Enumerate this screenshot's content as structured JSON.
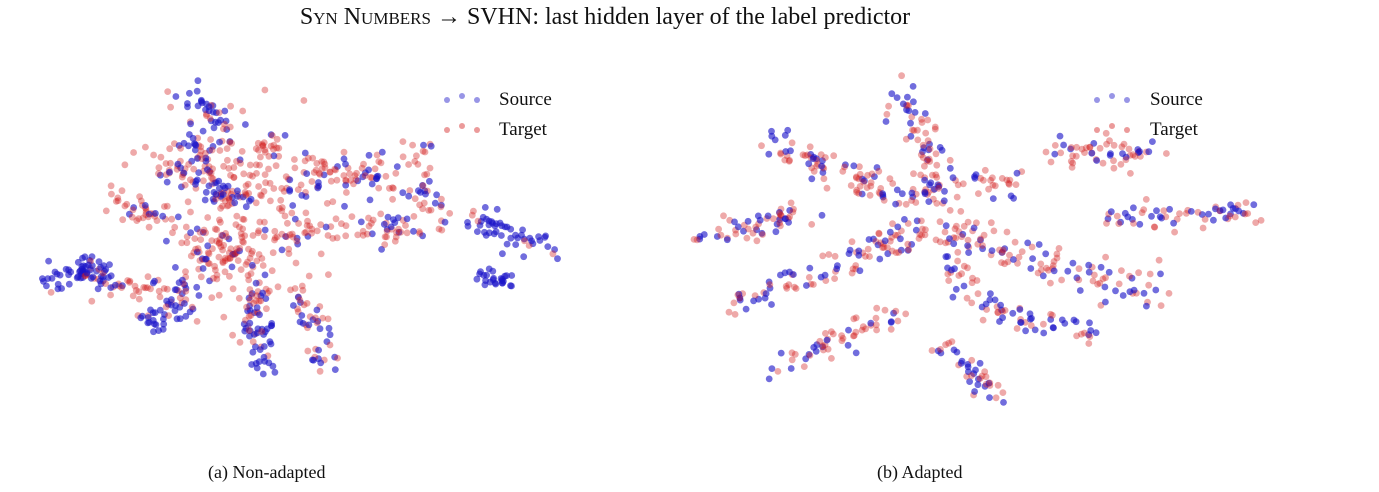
{
  "figure": {
    "title_smallcaps": "Syn Numbers",
    "title_arrow": "→",
    "title_rest": "SVHN: last hidden layer of the label predictor"
  },
  "colors": {
    "source": "#1a14c8",
    "target": "#d21e1e"
  },
  "chart_data": [
    {
      "type": "scatter",
      "caption": "(a) Non-adapted",
      "title": "",
      "xlabel": "",
      "ylabel": "",
      "axes_visible": false,
      "grid": false,
      "legend_position": "top-right",
      "series": [
        {
          "name": "Source",
          "color": "#1a14c8"
        },
        {
          "name": "Target",
          "color": "#d21e1e"
        }
      ],
      "clusters": [
        {
          "from": [
            0.03,
            0.62
          ],
          "to": [
            0.12,
            0.58
          ],
          "spread": 0.012,
          "n": 45,
          "source_frac": 0.92
        },
        {
          "from": [
            0.15,
            0.63
          ],
          "to": [
            0.21,
            0.64
          ],
          "spread": 0.01,
          "n": 20,
          "source_frac": 0.25
        },
        {
          "from": [
            0.27,
            0.05
          ],
          "to": [
            0.33,
            0.21
          ],
          "spread": 0.014,
          "n": 35,
          "source_frac": 0.85
        },
        {
          "from": [
            0.32,
            0.22
          ],
          "to": [
            0.37,
            0.62
          ],
          "spread": 0.055,
          "n": 160,
          "source_frac": 0.04
        },
        {
          "from": [
            0.2,
            0.26
          ],
          "to": [
            0.36,
            0.4
          ],
          "spread": 0.02,
          "n": 60,
          "source_frac": 0.35
        },
        {
          "from": [
            0.14,
            0.37
          ],
          "to": [
            0.36,
            0.57
          ],
          "spread": 0.018,
          "n": 70,
          "source_frac": 0.3
        },
        {
          "from": [
            0.36,
            0.48
          ],
          "to": [
            0.68,
            0.46
          ],
          "spread": 0.02,
          "n": 90,
          "source_frac": 0.25
        },
        {
          "from": [
            0.43,
            0.36
          ],
          "to": [
            0.67,
            0.24
          ],
          "spread": 0.018,
          "n": 60,
          "source_frac": 0.35
        },
        {
          "from": [
            0.46,
            0.28
          ],
          "to": [
            0.7,
            0.38
          ],
          "spread": 0.018,
          "n": 60,
          "source_frac": 0.25
        },
        {
          "from": [
            0.7,
            0.41
          ],
          "to": [
            0.86,
            0.53
          ],
          "spread": 0.016,
          "n": 55,
          "source_frac": 0.8
        },
        {
          "from": [
            0.75,
            0.6
          ],
          "to": [
            0.8,
            0.63
          ],
          "spread": 0.01,
          "n": 25,
          "source_frac": 0.95
        },
        {
          "from": [
            0.08,
            0.56
          ],
          "to": [
            0.14,
            0.65
          ],
          "spread": 0.015,
          "n": 30,
          "source_frac": 0.6
        },
        {
          "from": [
            0.38,
            0.62
          ],
          "to": [
            0.37,
            0.8
          ],
          "spread": 0.014,
          "n": 40,
          "source_frac": 0.5
        },
        {
          "from": [
            0.39,
            0.75
          ],
          "to": [
            0.39,
            0.88
          ],
          "spread": 0.01,
          "n": 25,
          "source_frac": 0.92
        },
        {
          "from": [
            0.45,
            0.65
          ],
          "to": [
            0.5,
            0.88
          ],
          "spread": 0.014,
          "n": 45,
          "source_frac": 0.5
        },
        {
          "from": [
            0.29,
            0.57
          ],
          "to": [
            0.2,
            0.76
          ],
          "spread": 0.016,
          "n": 45,
          "source_frac": 0.6
        },
        {
          "from": [
            0.19,
            0.74
          ],
          "to": [
            0.25,
            0.72
          ],
          "spread": 0.012,
          "n": 20,
          "source_frac": 0.95
        },
        {
          "from": [
            0.27,
            0.2
          ],
          "to": [
            0.31,
            0.33
          ],
          "spread": 0.015,
          "n": 30,
          "source_frac": 0.7
        },
        {
          "from": [
            0.37,
            0.28
          ],
          "to": [
            0.42,
            0.2
          ],
          "spread": 0.014,
          "n": 25,
          "source_frac": 0.2
        },
        {
          "from": [
            0.3,
            0.52
          ],
          "to": [
            0.36,
            0.56
          ],
          "spread": 0.02,
          "n": 30,
          "source_frac": 0.05
        }
      ]
    },
    {
      "type": "scatter",
      "caption": "(b) Adapted",
      "title": "",
      "xlabel": "",
      "ylabel": "",
      "axes_visible": false,
      "grid": false,
      "legend_position": "top-right",
      "series": [
        {
          "name": "Source",
          "color": "#1a14c8"
        },
        {
          "name": "Target",
          "color": "#d21e1e"
        }
      ],
      "clusters": [
        {
          "from": [
            0.36,
            0.05
          ],
          "to": [
            0.41,
            0.33
          ],
          "spread": 0.018,
          "n": 60,
          "source_frac": 0.45
        },
        {
          "from": [
            0.13,
            0.22
          ],
          "to": [
            0.34,
            0.36
          ],
          "spread": 0.02,
          "n": 70,
          "source_frac": 0.4
        },
        {
          "from": [
            0.3,
            0.33
          ],
          "to": [
            0.44,
            0.38
          ],
          "spread": 0.02,
          "n": 40,
          "source_frac": 0.3
        },
        {
          "from": [
            0.46,
            0.3
          ],
          "to": [
            0.56,
            0.35
          ],
          "spread": 0.015,
          "n": 25,
          "source_frac": 0.4
        },
        {
          "from": [
            0.61,
            0.24
          ],
          "to": [
            0.77,
            0.26
          ],
          "spread": 0.018,
          "n": 55,
          "source_frac": 0.4
        },
        {
          "from": [
            0.7,
            0.44
          ],
          "to": [
            0.96,
            0.41
          ],
          "spread": 0.012,
          "n": 60,
          "source_frac": 0.45
        },
        {
          "from": [
            0.02,
            0.5
          ],
          "to": [
            0.21,
            0.41
          ],
          "spread": 0.014,
          "n": 55,
          "source_frac": 0.45
        },
        {
          "from": [
            0.07,
            0.68
          ],
          "to": [
            0.36,
            0.5
          ],
          "spread": 0.016,
          "n": 80,
          "source_frac": 0.45
        },
        {
          "from": [
            0.32,
            0.48
          ],
          "to": [
            0.48,
            0.47
          ],
          "spread": 0.018,
          "n": 40,
          "source_frac": 0.35
        },
        {
          "from": [
            0.43,
            0.49
          ],
          "to": [
            0.78,
            0.66
          ],
          "spread": 0.02,
          "n": 100,
          "source_frac": 0.35
        },
        {
          "from": [
            0.43,
            0.59
          ],
          "to": [
            0.52,
            0.72
          ],
          "spread": 0.016,
          "n": 35,
          "source_frac": 0.5
        },
        {
          "from": [
            0.53,
            0.72
          ],
          "to": [
            0.67,
            0.77
          ],
          "spread": 0.012,
          "n": 35,
          "source_frac": 0.5
        },
        {
          "from": [
            0.14,
            0.87
          ],
          "to": [
            0.35,
            0.72
          ],
          "spread": 0.016,
          "n": 55,
          "source_frac": 0.45
        },
        {
          "from": [
            0.42,
            0.8
          ],
          "to": [
            0.51,
            0.96
          ],
          "spread": 0.012,
          "n": 40,
          "source_frac": 0.4
        }
      ]
    }
  ]
}
